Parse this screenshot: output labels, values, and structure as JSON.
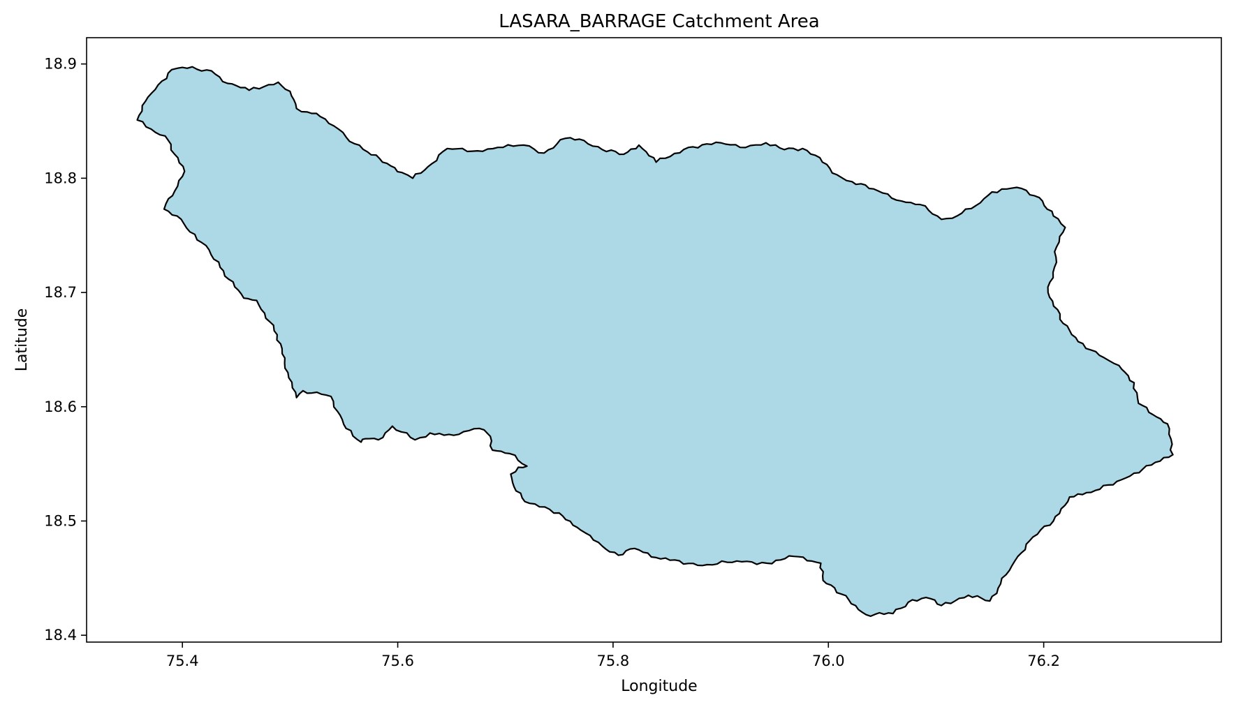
{
  "chart_data": {
    "type": "map",
    "title": "LASARA_BARRAGE Catchment Area",
    "xlabel": "Longitude",
    "ylabel": "Latitude",
    "xlim": [
      75.311,
      76.365
    ],
    "ylim": [
      18.394,
      18.923
    ],
    "x_ticks": [
      75.4,
      75.6,
      75.8,
      76.0,
      76.2
    ],
    "x_tick_labels": [
      "75.4",
      "75.6",
      "75.8",
      "76.0",
      "76.2"
    ],
    "y_ticks": [
      18.4,
      18.5,
      18.6,
      18.7,
      18.8,
      18.9
    ],
    "y_tick_labels": [
      "18.4",
      "18.5",
      "18.6",
      "18.7",
      "18.8",
      "18.9"
    ],
    "grid": false,
    "legend": "none",
    "colors": {
      "fill": "#add8e6",
      "edge": "#000000"
    },
    "polygon": {
      "name": "LASARA_BARRAGE catchment",
      "lon": [
        75.4,
        75.427,
        75.442,
        75.462,
        75.489,
        75.5,
        75.506,
        75.516,
        75.528,
        75.536,
        75.545,
        75.552,
        75.572,
        75.59,
        75.604,
        75.614,
        75.628,
        75.646,
        75.674,
        75.693,
        75.717,
        75.736,
        75.756,
        75.773,
        75.79,
        75.81,
        75.824,
        75.84,
        75.87,
        75.9,
        75.918,
        75.942,
        75.959,
        75.976,
        75.988,
        76.008,
        76.022,
        76.046,
        76.068,
        76.085,
        76.105,
        76.115,
        76.137,
        76.152,
        76.175,
        76.196,
        76.209,
        76.22,
        76.212,
        76.21,
        76.204,
        76.218,
        76.232,
        76.256,
        76.27,
        76.284,
        76.288,
        76.305,
        76.315,
        76.32,
        76.3,
        76.272,
        76.244,
        76.224,
        76.209,
        76.19,
        76.176,
        76.165,
        76.16,
        76.15,
        76.13,
        76.105,
        76.095,
        76.078,
        76.06,
        76.035,
        76.012,
        75.995,
        75.993,
        75.968,
        75.943,
        75.915,
        75.883,
        75.84,
        75.82,
        75.805,
        75.79,
        75.77,
        75.75,
        75.718,
        75.708,
        75.705,
        75.712,
        75.72,
        75.704,
        75.688,
        75.686,
        75.676,
        75.666,
        75.652,
        75.63,
        75.616,
        75.595,
        75.582,
        75.57,
        75.566,
        75.552,
        75.544,
        75.538,
        75.529,
        75.512,
        75.506,
        75.498,
        75.488,
        75.469,
        75.457,
        75.435,
        75.422,
        75.407,
        75.395,
        75.383,
        75.387,
        75.393,
        75.402,
        75.384,
        75.371,
        75.358,
        75.368,
        75.381,
        75.39
      ],
      "lat": [
        18.897,
        18.894,
        18.883,
        18.877,
        18.884,
        18.876,
        18.861,
        18.858,
        18.854,
        18.848,
        18.843,
        18.836,
        18.823,
        18.813,
        18.805,
        18.8,
        18.81,
        18.826,
        18.824,
        18.827,
        18.829,
        18.822,
        18.835,
        18.833,
        18.825,
        18.821,
        18.829,
        18.814,
        18.827,
        18.831,
        18.827,
        18.831,
        18.825,
        18.826,
        18.82,
        18.803,
        18.797,
        18.789,
        18.78,
        18.777,
        18.764,
        18.765,
        18.776,
        18.788,
        18.792,
        18.783,
        18.767,
        18.757,
        18.74,
        18.722,
        18.7,
        18.673,
        18.657,
        18.643,
        18.636,
        18.621,
        18.603,
        18.591,
        18.585,
        18.558,
        18.549,
        18.536,
        18.525,
        18.521,
        18.5,
        18.486,
        18.469,
        18.453,
        18.445,
        18.43,
        18.435,
        18.426,
        18.432,
        18.431,
        18.419,
        18.418,
        18.436,
        18.448,
        18.463,
        18.469,
        18.463,
        18.465,
        18.461,
        18.468,
        18.476,
        18.47,
        18.478,
        18.492,
        18.507,
        18.517,
        18.53,
        18.541,
        18.547,
        18.548,
        18.559,
        18.562,
        18.574,
        18.581,
        18.579,
        18.575,
        18.577,
        18.571,
        18.583,
        18.571,
        18.572,
        18.569,
        18.581,
        18.596,
        18.609,
        18.611,
        18.614,
        18.608,
        18.63,
        18.663,
        18.693,
        18.695,
        18.722,
        18.741,
        18.753,
        18.767,
        18.773,
        18.782,
        18.789,
        18.806,
        18.837,
        18.843,
        18.851,
        18.871,
        18.885,
        18.895
      ]
    }
  }
}
